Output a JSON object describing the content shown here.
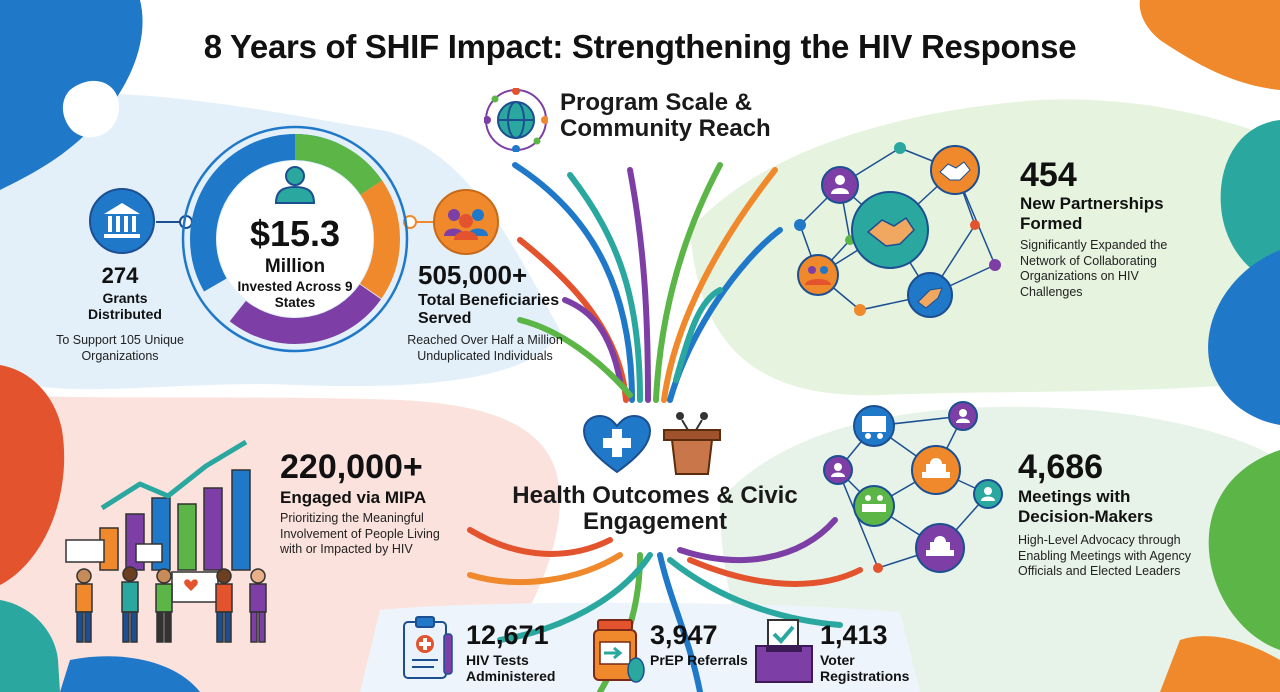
{
  "title": "8 Years of SHIF Impact: Strengthening the HIV Response",
  "sections": {
    "program_scale": "Program Scale & Community Reach",
    "health_outcomes": "Health Outcomes & Civic Engagement"
  },
  "program_scale": {
    "grants": {
      "value": "274",
      "label": "Grants Distributed",
      "detail": "To Support 105 Unique Organizations"
    },
    "invested": {
      "value": "$15.3",
      "unit": "Million",
      "label": "Invested Across 9 States"
    },
    "beneficiaries": {
      "value": "505,000+",
      "label": "Total Beneficiaries Served",
      "detail": "Reached Over Half a Million Unduplicated Individuals"
    },
    "partnerships": {
      "value": "454",
      "label": "New Partnerships Formed",
      "detail": "Significantly Expanded the Network of Collaborating Organizations on HIV Challenges"
    }
  },
  "health_outcomes": {
    "mipa": {
      "value": "220,000+",
      "label": "Engaged via MIPA",
      "detail": "Prioritizing the Meaningful Involvement of People Living with or Impacted by HIV"
    },
    "meetings": {
      "value": "4,686",
      "label": "Meetings with Decision-Makers",
      "detail": "High-Level Advocacy through Enabling Meetings with Agency Officials and Elected Leaders"
    },
    "hiv_tests": {
      "value": "12,671",
      "label": "HIV Tests Administered"
    },
    "prep": {
      "value": "3,947",
      "label": "PrEP Referrals"
    },
    "voter": {
      "value": "1,413",
      "label": "Voter Registrations"
    }
  },
  "icons": [
    "globe-network-icon",
    "bank-icon",
    "person-icon",
    "group-icon",
    "handshake-icon",
    "heart-cross-icon",
    "podium-icon",
    "clipboard-medical-icon",
    "pill-bottle-icon",
    "ballot-box-icon",
    "capitol-icon",
    "meeting-icon"
  ],
  "colors": {
    "blue": "#1f78c8",
    "green": "#5bb547",
    "orange": "#f0892b",
    "purple": "#7d3fa6",
    "teal": "#2aa8a0",
    "red": "#e3532d",
    "dark_blue": "#1b4f91"
  }
}
